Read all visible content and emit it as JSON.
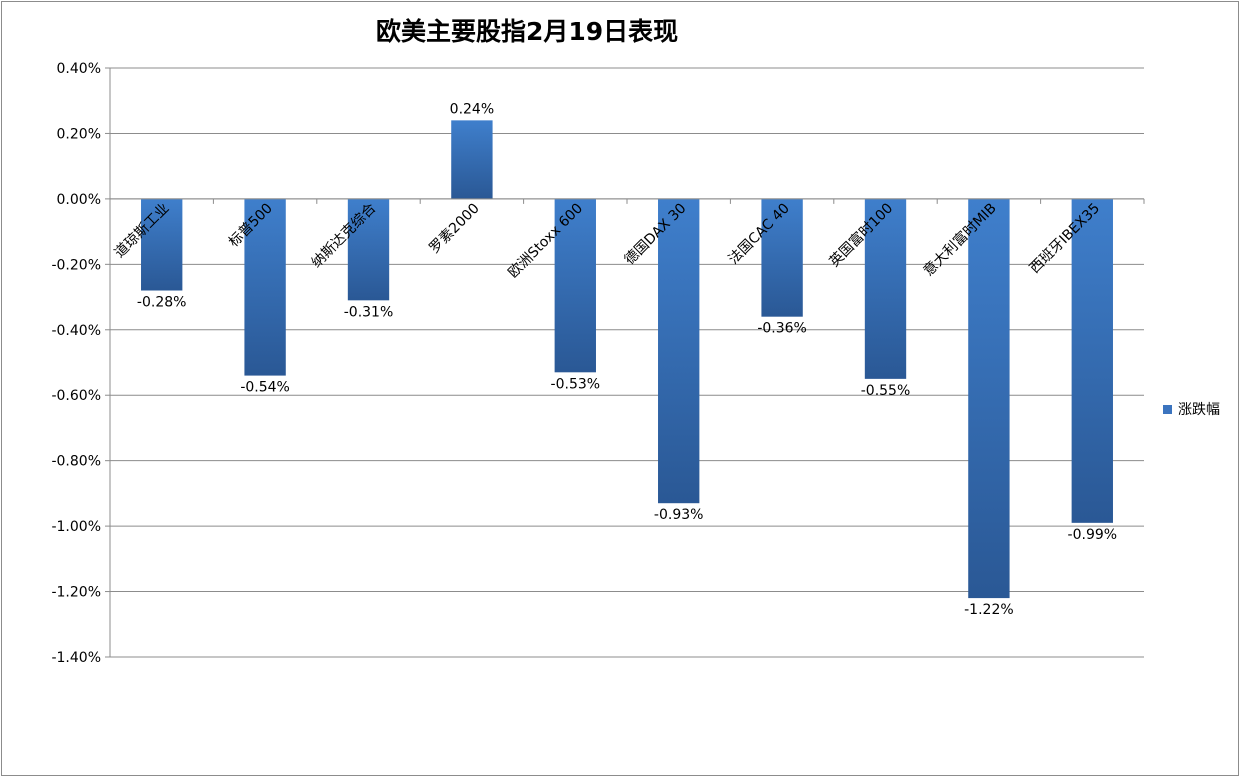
{
  "chart_data": {
    "type": "bar",
    "title": "欧美主要股指2月19日表现",
    "categories": [
      "道琼斯工业",
      "标普500",
      "纳斯达克综合",
      "罗素2000",
      "欧洲Stoxx 600",
      "德国DAX 30",
      "法国CAC 40",
      "英国富时100",
      "意大利富时MIB",
      "西班牙IBEX35"
    ],
    "series": [
      {
        "name": "涨跌幅",
        "values": [
          -0.28,
          -0.54,
          -0.31,
          0.24,
          -0.53,
          -0.93,
          -0.36,
          -0.55,
          -1.22,
          -0.99
        ],
        "data_labels": [
          "-0.28%",
          "-0.54%",
          "-0.31%",
          "0.24%",
          "-0.53%",
          "-0.93%",
          "-0.36%",
          "-0.55%",
          "-1.22%",
          "-0.99%"
        ],
        "color": "#3B74BF"
      }
    ],
    "ylim": [
      -1.4,
      0.4
    ],
    "yticks": [
      0.4,
      0.2,
      0.0,
      -0.2,
      -0.4,
      -0.6,
      -0.8,
      -1.0,
      -1.2,
      -1.4
    ],
    "ytick_labels": [
      "0.40%",
      "0.20%",
      "0.00%",
      "-0.20%",
      "-0.40%",
      "-0.60%",
      "-0.80%",
      "-1.00%",
      "-1.20%",
      "-1.40%"
    ],
    "grid": true,
    "legend": "right"
  }
}
